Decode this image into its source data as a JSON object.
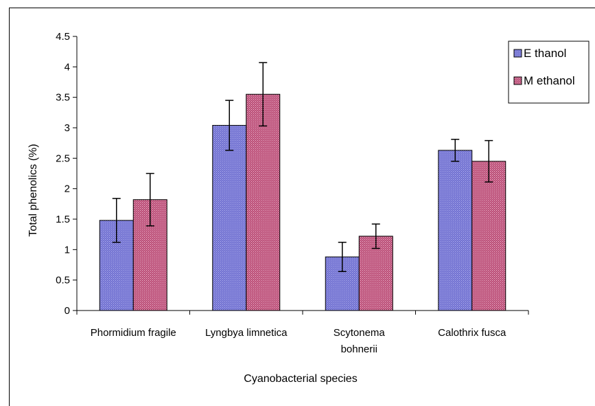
{
  "chart_data": {
    "type": "bar",
    "title": "",
    "xlabel": "Cyanobacterial species",
    "ylabel": "Total phenolics  (%)",
    "ylim": [
      0,
      4.5
    ],
    "yticks": [
      0,
      0.5,
      1,
      1.5,
      2,
      2.5,
      3,
      3.5,
      4,
      4.5
    ],
    "ytick_labels": [
      "0",
      "0.5",
      "1",
      "1.5",
      "2",
      "2.5",
      "3",
      "3.5",
      "4",
      "4.5"
    ],
    "categories": [
      [
        "Phormidium fragile"
      ],
      [
        "Lyngbya limnetica"
      ],
      [
        "Scytonema",
        "bohnerii"
      ],
      [
        "Calothrix fusca"
      ]
    ],
    "series": [
      {
        "name": "Ethanol",
        "color": "#7b7bd6",
        "values": [
          1.48,
          3.04,
          0.88,
          2.63
        ],
        "errors": [
          0.36,
          0.41,
          0.24,
          0.18
        ]
      },
      {
        "name": "Methanol",
        "color": "#c0527a",
        "values": [
          1.82,
          3.55,
          1.22,
          2.45
        ],
        "errors": [
          0.43,
          0.52,
          0.2,
          0.34
        ]
      }
    ],
    "grid": false,
    "legend_position": "top-right",
    "legend_labels": [
      "E thanol",
      "M ethanol"
    ]
  }
}
